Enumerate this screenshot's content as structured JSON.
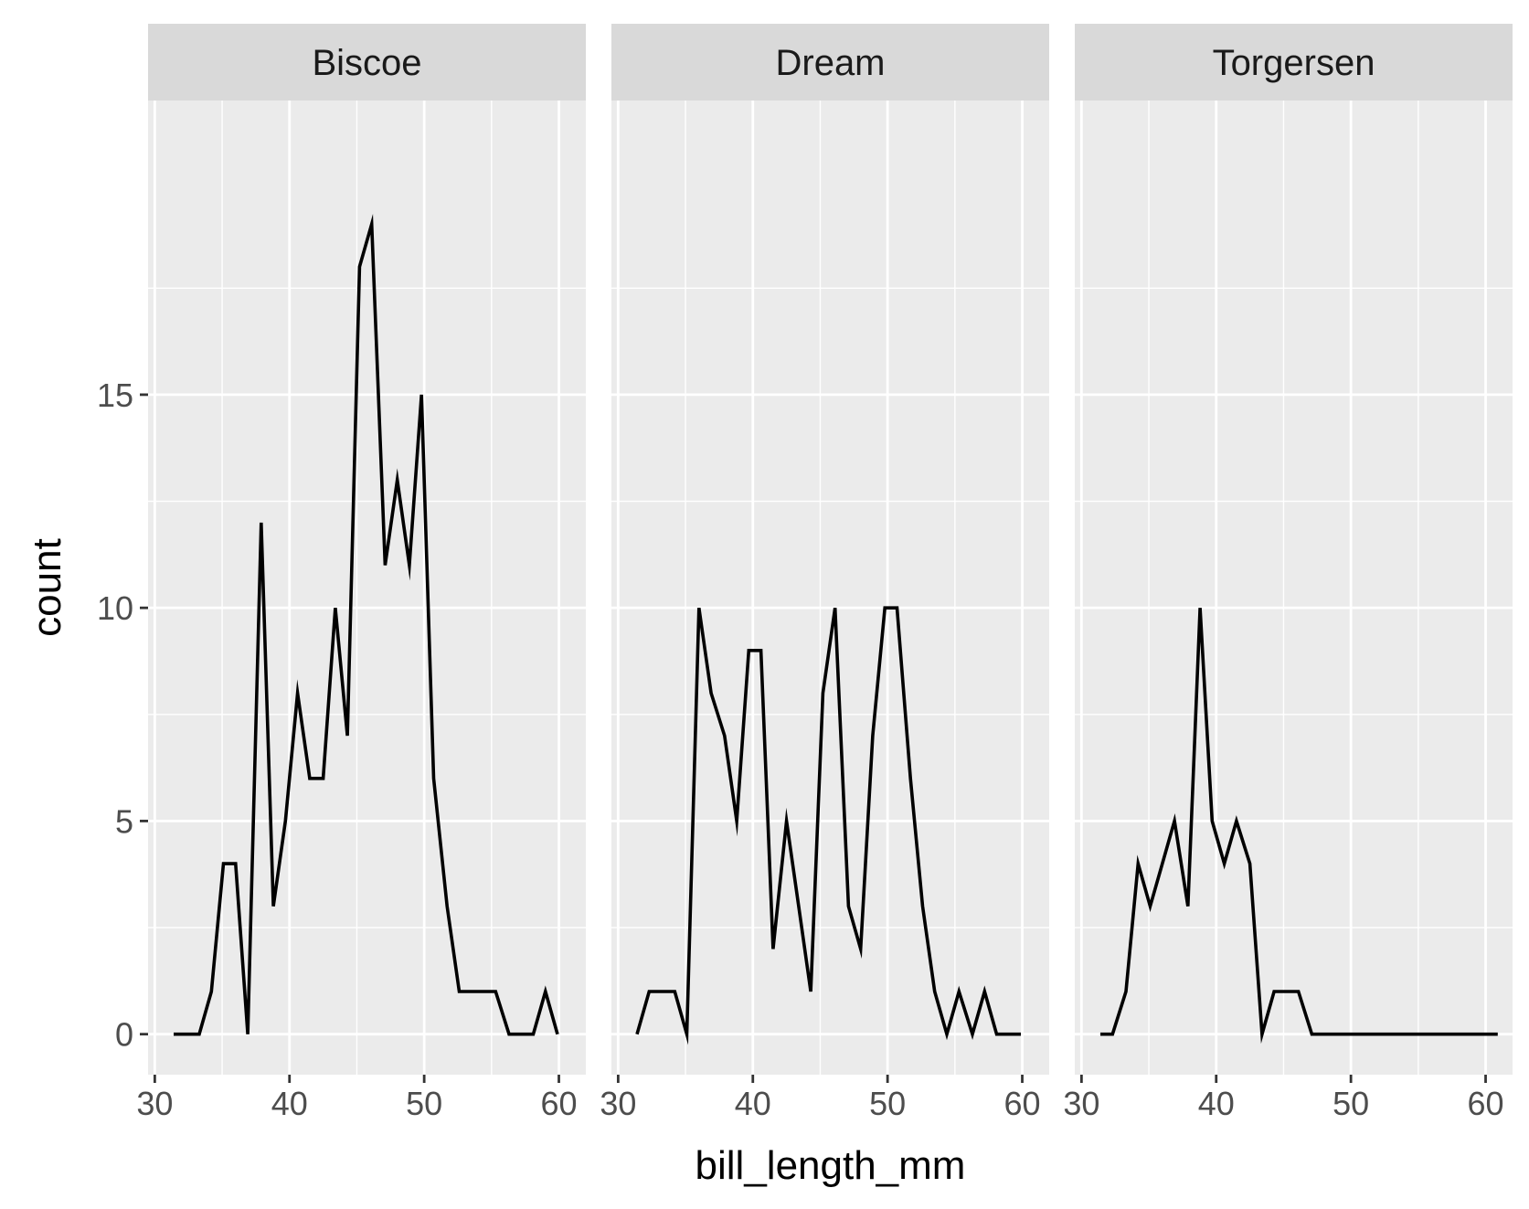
{
  "chart_data": {
    "type": "line",
    "subtype": "frequency-polygon",
    "facet_by": "island",
    "xlabel": "bill_length_mm",
    "ylabel": "count",
    "xlim": [
      29.5,
      62
    ],
    "ylim": [
      -0.95,
      21.9
    ],
    "x_ticks": [
      30,
      40,
      50,
      60
    ],
    "y_ticks": [
      0,
      5,
      10,
      15
    ],
    "x": [
      31.4,
      32.3,
      33.3,
      34.2,
      35.1,
      36.0,
      36.9,
      37.9,
      38.8,
      39.7,
      40.6,
      41.5,
      42.5,
      43.4,
      44.3,
      45.2,
      46.1,
      47.1,
      48.0,
      48.9,
      49.8,
      50.7,
      51.7,
      52.6,
      53.5,
      54.4,
      55.3,
      56.3,
      57.2,
      58.1,
      59.0,
      59.9,
      60.9
    ],
    "grid": true,
    "legend": "none",
    "line_color": "#000000",
    "panel_background": "#ebebeb",
    "strip_background": "#d9d9d9",
    "series": [
      {
        "name": "Biscoe",
        "values": [
          0,
          0,
          0,
          1,
          4,
          4,
          0,
          12,
          3,
          5,
          8,
          6,
          6,
          10,
          7,
          18,
          19,
          11,
          13,
          11,
          15,
          6,
          3,
          1,
          1,
          1,
          1,
          0,
          0,
          0,
          1,
          0,
          null
        ]
      },
      {
        "name": "Dream",
        "values": [
          0,
          1,
          1,
          1,
          0,
          10,
          8,
          7,
          5,
          9,
          9,
          2,
          5,
          3,
          1,
          8,
          10,
          3,
          2,
          7,
          10,
          10,
          6,
          3,
          1,
          0,
          1,
          0,
          1,
          0,
          0,
          0,
          null
        ]
      },
      {
        "name": "Torgersen",
        "values": [
          0,
          0,
          1,
          4,
          3,
          4,
          5,
          3,
          10,
          5,
          4,
          5,
          4,
          0,
          1,
          1,
          1,
          0,
          0,
          0,
          0,
          0,
          0,
          0,
          0,
          0,
          0,
          0,
          0,
          0,
          0,
          0,
          0
        ]
      }
    ]
  }
}
